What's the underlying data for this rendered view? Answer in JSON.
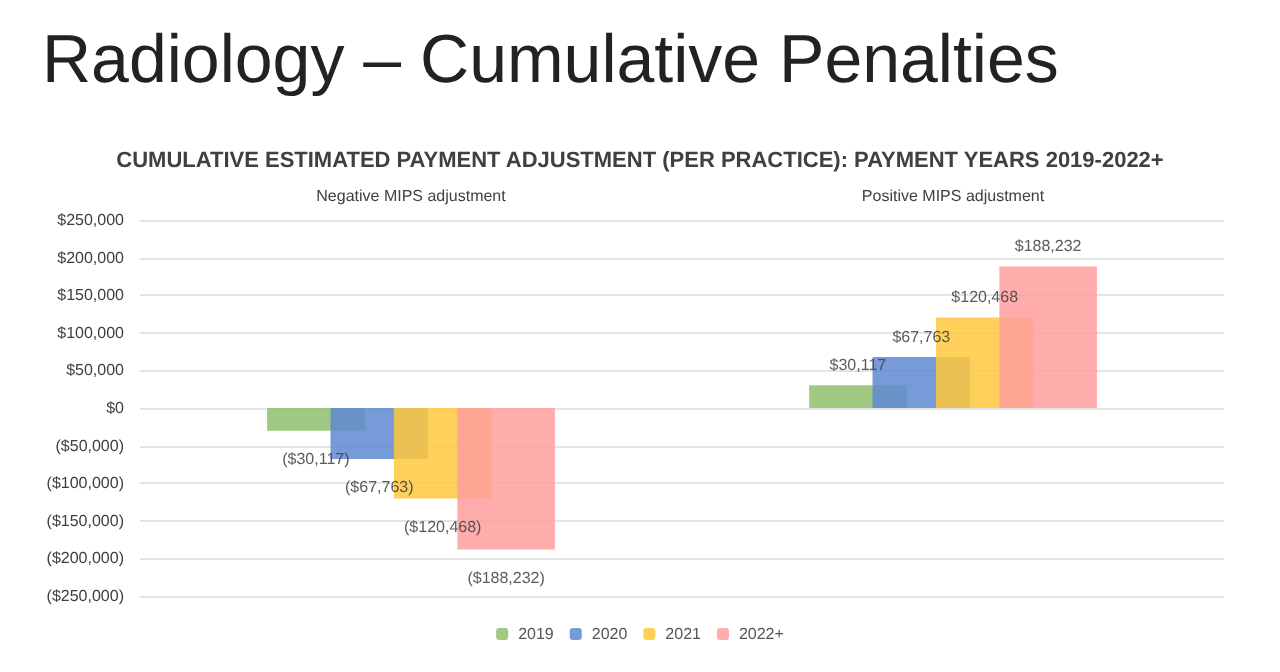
{
  "chart_data": {
    "type": "bar",
    "title": "Radiology – Cumulative Penalties",
    "subtitle": "CUMULATIVE ESTIMATED PAYMENT ADJUSTMENT (PER PRACTICE): PAYMENT YEARS 2019-2022+",
    "categories": [
      "Negative MIPS adjustment",
      "Positive MIPS adjustment"
    ],
    "series": [
      {
        "name": "2019",
        "color": "#8fbf6e",
        "values": [
          -30117,
          30117
        ],
        "value_labels": [
          "($30,117)",
          "$30,117"
        ]
      },
      {
        "name": "2020",
        "color": "#5f8ad1",
        "values": [
          -67763,
          67763
        ],
        "value_labels": [
          "($67,763)",
          "$67,763"
        ]
      },
      {
        "name": "2021",
        "color": "#ffc83d",
        "values": [
          -120468,
          120468
        ],
        "value_labels": [
          "($120,468)",
          "$120,468"
        ]
      },
      {
        "name": "2022+",
        "color": "#ff9e9e",
        "values": [
          -188232,
          188232
        ],
        "value_labels": [
          "($188,232)",
          "$188,232"
        ]
      }
    ],
    "ylim": [
      -250000,
      250000
    ],
    "yticks": [
      {
        "value": -250000,
        "label": "($250,000)"
      },
      {
        "value": -200000,
        "label": "($200,000)"
      },
      {
        "value": -150000,
        "label": "($150,000)"
      },
      {
        "value": -100000,
        "label": "($100,000)"
      },
      {
        "value": -50000,
        "label": "($50,000)"
      },
      {
        "value": 0,
        "label": "$0"
      },
      {
        "value": 50000,
        "label": "$50,000"
      },
      {
        "value": 100000,
        "label": "$100,000"
      },
      {
        "value": 150000,
        "label": "$150,000"
      },
      {
        "value": 200000,
        "label": "$200,000"
      },
      {
        "value": 250000,
        "label": "$250,000"
      }
    ],
    "grid": "y",
    "legend": "bottom"
  }
}
